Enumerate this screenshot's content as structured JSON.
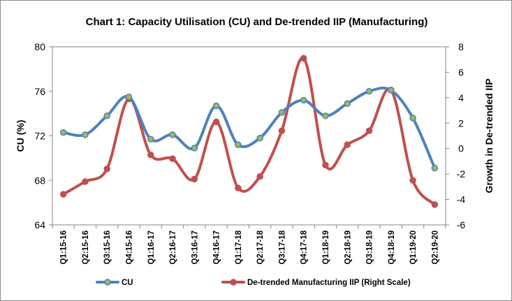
{
  "chart_data": {
    "type": "line",
    "title": "Chart 1: Capacity Utilisation (CU) and De-trended IIP (Manufacturing)",
    "categories": [
      "Q1:15-16",
      "Q2:15-16",
      "Q3:15-16",
      "Q4:15-16",
      "Q1:16-17",
      "Q2:16-17",
      "Q3:16-17",
      "Q4:16-17",
      "Q1:17-18",
      "Q2:17-18",
      "Q3:17-18",
      "Q4:17-18",
      "Q1:18-19",
      "Q2:18-19",
      "Q3:18-19",
      "Q4:18-19",
      "Q1:19-20",
      "Q2:19-20"
    ],
    "ylabel": "CU (%)",
    "ylabel_right": "Growth in De-trended IIP",
    "ylim": [
      64,
      80
    ],
    "yticks": [
      "64",
      "68",
      "72",
      "76",
      "80"
    ],
    "ylim_right": [
      -6,
      8
    ],
    "yticks_right": [
      "-6",
      "-4",
      "-2",
      "0",
      "2",
      "4",
      "6",
      "8"
    ],
    "series": [
      {
        "name": "CU",
        "axis": "left",
        "color": "#4f81bd",
        "marker_color": "#9bbb59",
        "values": [
          72.3,
          72.1,
          73.8,
          75.5,
          71.7,
          72.1,
          70.9,
          74.7,
          71.2,
          71.8,
          74.1,
          75.2,
          73.8,
          74.9,
          76.0,
          76.1,
          73.6,
          69.1
        ]
      },
      {
        "name": "De-trended Manufacturing IIP (Right Scale)",
        "axis": "right",
        "color": "#c0504d",
        "marker_color": "#c0504d",
        "values": [
          -3.6,
          -2.6,
          -1.6,
          3.9,
          -0.5,
          -0.8,
          -2.4,
          2.1,
          -3.1,
          -2.2,
          1.4,
          7.1,
          -1.3,
          0.3,
          1.4,
          4.6,
          -2.5,
          -4.4
        ]
      }
    ],
    "legend_position": "bottom"
  }
}
